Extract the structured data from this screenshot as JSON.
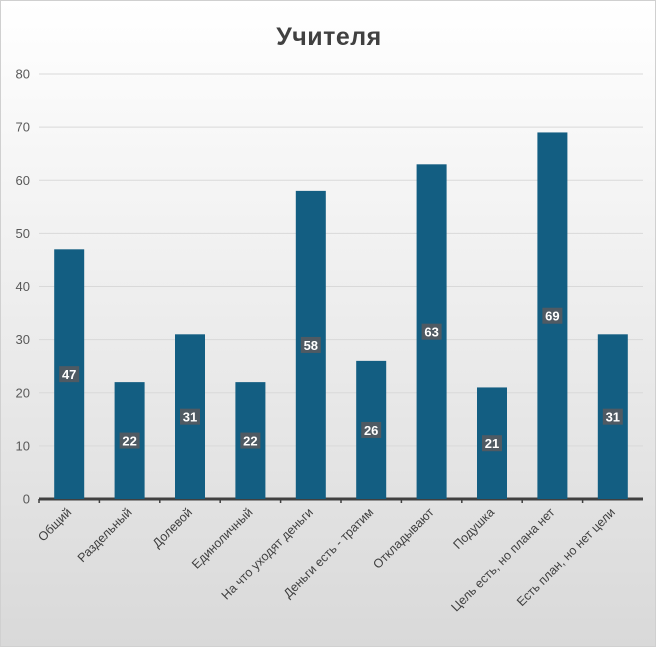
{
  "chart_data": {
    "type": "bar",
    "title": "Учителя",
    "categories": [
      "Общий",
      "Раздельный",
      "Долевой",
      "Единоличный",
      "На что уходят деньги",
      "Деньги есть - тратим",
      "Откладывают",
      "Подушка",
      "Цель есть, но плана нет",
      "Есть план, но нет цели"
    ],
    "values": [
      47,
      22,
      31,
      22,
      58,
      26,
      63,
      21,
      69,
      31
    ],
    "ylim": [
      0,
      80
    ],
    "yticks": [
      0,
      10,
      20,
      30,
      40,
      50,
      60,
      70,
      80
    ],
    "grid": true,
    "bar_color": "#135e82",
    "label_bg": "#4f5a63",
    "data_labels": true
  }
}
